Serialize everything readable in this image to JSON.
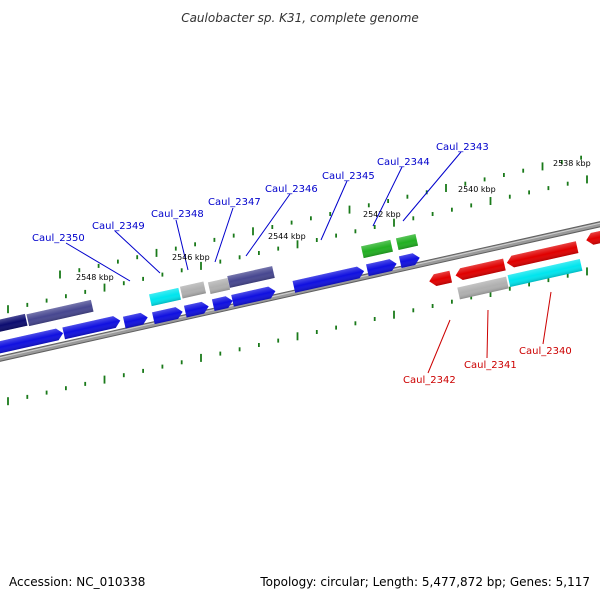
{
  "title": "Caulobacter sp. K31, complete genome",
  "footer": {
    "accession": "Accession: NC_010338",
    "topology": "Topology: circular; Length: 5,477,872 bp; Genes: 5,117"
  },
  "colors": {
    "label_blue": "#0000cc",
    "label_red": "#cc0000",
    "tick_green": "#1a7a1a",
    "backbone": "#8a8a8a",
    "gene_blue": "#1010e0",
    "gene_navy": "#0c0c70",
    "gene_slate": "#474790",
    "gene_cyan": "#00e5ee",
    "gene_gray": "#b0b0b0",
    "gene_green": "#22b022",
    "gene_red": "#e00000"
  },
  "scale_labels": [
    {
      "text": "2548 kbp"
    },
    {
      "text": "2546 kbp"
    },
    {
      "text": "2544 kbp"
    },
    {
      "text": "2542 kbp"
    },
    {
      "text": "2540 kbp"
    },
    {
      "text": "2538 kbp"
    }
  ],
  "gene_labels": [
    {
      "text": "Caul_2350",
      "strand": "plus"
    },
    {
      "text": "Caul_2349",
      "strand": "plus"
    },
    {
      "text": "Caul_2348",
      "strand": "plus"
    },
    {
      "text": "Caul_2347",
      "strand": "plus"
    },
    {
      "text": "Caul_2346",
      "strand": "plus"
    },
    {
      "text": "Caul_2345",
      "strand": "plus"
    },
    {
      "text": "Caul_2344",
      "strand": "plus"
    },
    {
      "text": "Caul_2343",
      "strand": "plus"
    },
    {
      "text": "Caul_2342",
      "strand": "minus"
    },
    {
      "text": "Caul_2341",
      "strand": "minus"
    },
    {
      "text": "Caul_2340",
      "strand": "minus"
    }
  ]
}
